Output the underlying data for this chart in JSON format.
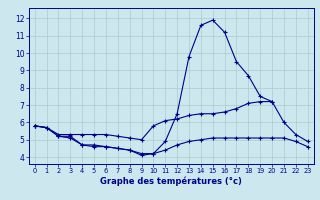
{
  "hours": [
    0,
    1,
    2,
    3,
    4,
    5,
    6,
    7,
    8,
    9,
    10,
    11,
    12,
    13,
    14,
    15,
    16,
    17,
    18,
    19,
    20,
    21,
    22,
    23
  ],
  "temps_main": [
    5.8,
    5.7,
    5.2,
    5.2,
    4.7,
    4.7,
    4.6,
    4.5,
    4.4,
    4.1,
    4.2,
    4.9,
    6.5,
    9.8,
    11.6,
    11.9,
    11.2,
    9.5,
    8.7,
    7.5,
    7.2,
    null,
    null,
    null
  ],
  "temps_slow": [
    5.8,
    5.7,
    5.3,
    5.3,
    5.3,
    5.3,
    5.3,
    5.2,
    5.1,
    5.0,
    5.8,
    6.1,
    6.2,
    6.4,
    6.5,
    6.5,
    6.6,
    6.8,
    7.1,
    7.2,
    7.2,
    6.0,
    5.3,
    4.9
  ],
  "temps_flat": [
    5.8,
    5.7,
    5.2,
    5.1,
    4.7,
    4.6,
    4.6,
    4.5,
    4.4,
    4.2,
    4.2,
    4.4,
    4.7,
    4.9,
    5.0,
    5.1,
    5.1,
    5.1,
    5.1,
    5.1,
    5.1,
    5.1,
    4.9,
    4.6
  ],
  "bg_color": "#cce8ee",
  "grid_color": "#aacccc",
  "line_color": "#00008b",
  "marker": "+",
  "xlabel": "Graphe des températures (°c)",
  "yticks": [
    4,
    5,
    6,
    7,
    8,
    9,
    10,
    11,
    12
  ],
  "ylim": [
    3.6,
    12.6
  ],
  "xlim": [
    -0.5,
    23.5
  ]
}
